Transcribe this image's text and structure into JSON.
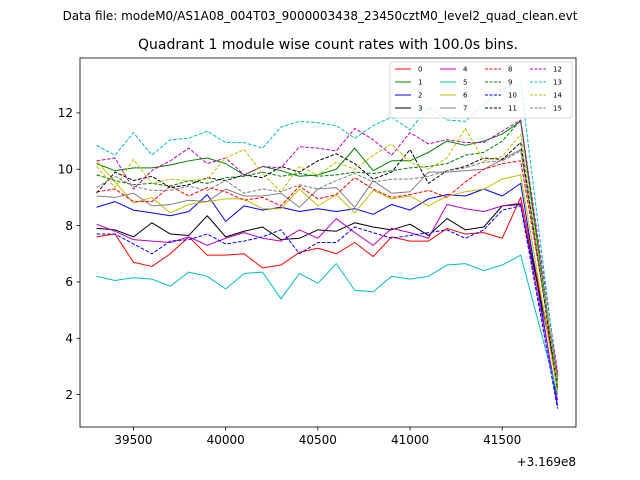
{
  "suptitle": "Data file: modeM0/AS1A08_004T03_9000003438_23450cztM0_level2_quad_clean.evt",
  "chart_data": {
    "type": "line",
    "title": "Quadrant 1 module wise count rates with 100.0s bins.",
    "xlabel": "",
    "ylabel": "",
    "x_offset_label": "+3.169e8",
    "xlim": [
      39210,
      41900
    ],
    "ylim": [
      0.85,
      13.95
    ],
    "xticks": [
      39500,
      40000,
      40500,
      41000,
      41500
    ],
    "yticks": [
      2,
      4,
      6,
      8,
      10,
      12
    ],
    "x": [
      39300,
      39400,
      39500,
      39600,
      39700,
      39800,
      39900,
      40000,
      40100,
      40200,
      40300,
      40400,
      40500,
      40600,
      40700,
      40800,
      40900,
      41000,
      41100,
      41200,
      41300,
      41400,
      41500,
      41600,
      41800
    ],
    "series": [
      {
        "name": "0",
        "color": "#ff0000",
        "dash": false,
        "values": [
          7.6,
          7.7,
          6.7,
          6.55,
          7.0,
          7.6,
          6.95,
          6.95,
          7.0,
          6.5,
          6.6,
          7.05,
          7.2,
          7.0,
          7.4,
          6.9,
          7.6,
          7.45,
          7.45,
          7.9,
          7.7,
          7.75,
          7.55,
          9.0,
          2.6
        ]
      },
      {
        "name": "1",
        "color": "#008000",
        "dash": false,
        "values": [
          10.2,
          9.95,
          10.05,
          10.05,
          10.15,
          10.3,
          10.4,
          10.2,
          9.8,
          10.1,
          9.95,
          9.75,
          9.8,
          10.0,
          10.75,
          9.95,
          10.3,
          10.3,
          10.6,
          11.0,
          10.85,
          11.0,
          11.25,
          11.7,
          2.2
        ]
      },
      {
        "name": "2",
        "color": "#0000ff",
        "dash": false,
        "values": [
          8.65,
          8.85,
          8.55,
          8.45,
          8.35,
          8.5,
          9.1,
          8.15,
          8.7,
          8.55,
          8.65,
          8.5,
          8.6,
          8.5,
          8.6,
          8.4,
          8.75,
          8.55,
          8.95,
          9.1,
          9.05,
          9.3,
          9.05,
          9.5,
          1.6
        ]
      },
      {
        "name": "3",
        "color": "#000000",
        "dash": false,
        "values": [
          7.9,
          7.85,
          7.6,
          8.1,
          7.7,
          7.65,
          8.35,
          7.6,
          7.8,
          7.95,
          7.5,
          7.55,
          7.85,
          7.8,
          8.1,
          7.95,
          7.85,
          8.05,
          7.65,
          8.25,
          7.85,
          7.95,
          8.7,
          8.75,
          2.5
        ]
      },
      {
        "name": "4",
        "color": "#bf00bf",
        "dash": false,
        "values": [
          8.05,
          7.8,
          7.5,
          7.45,
          7.4,
          7.6,
          7.3,
          7.55,
          7.75,
          7.55,
          7.45,
          7.85,
          7.55,
          8.25,
          7.75,
          7.3,
          7.9,
          7.75,
          7.55,
          8.75,
          8.6,
          8.5,
          8.7,
          8.8,
          1.8
        ]
      },
      {
        "name": "5",
        "color": "#00bfbf",
        "dash": false,
        "values": [
          6.2,
          6.05,
          6.15,
          6.1,
          5.85,
          6.35,
          6.2,
          5.75,
          6.3,
          6.35,
          5.4,
          6.3,
          5.95,
          6.65,
          5.7,
          5.65,
          6.2,
          6.1,
          6.2,
          6.6,
          6.65,
          6.4,
          6.6,
          6.95,
          2.0
        ]
      },
      {
        "name": "6",
        "color": "#bfbf00",
        "dash": false,
        "values": [
          10.3,
          9.55,
          8.8,
          9.0,
          8.45,
          8.75,
          8.85,
          8.95,
          8.95,
          8.6,
          8.6,
          9.3,
          8.7,
          9.1,
          8.45,
          9.25,
          8.95,
          9.05,
          8.7,
          9.05,
          9.2,
          9.3,
          9.65,
          9.8,
          2.1
        ]
      },
      {
        "name": "7",
        "color": "#808080",
        "dash": false,
        "values": [
          9.05,
          9.0,
          9.15,
          8.7,
          8.75,
          8.9,
          8.85,
          9.3,
          9.05,
          9.05,
          9.15,
          8.65,
          9.3,
          9.35,
          8.65,
          9.6,
          9.15,
          9.2,
          9.9,
          9.9,
          9.95,
          10.0,
          10.35,
          10.7,
          2.4
        ]
      },
      {
        "name": "8",
        "color": "#ff0000",
        "dash": true,
        "values": [
          9.2,
          9.3,
          8.85,
          8.85,
          9.4,
          9.05,
          9.35,
          9.2,
          8.9,
          9.0,
          8.7,
          9.4,
          8.95,
          9.1,
          9.7,
          9.3,
          9.0,
          9.1,
          9.25,
          9.0,
          9.55,
          10.0,
          10.2,
          10.3,
          2.7
        ]
      },
      {
        "name": "9",
        "color": "#008000",
        "dash": true,
        "values": [
          9.8,
          9.6,
          9.45,
          9.5,
          9.4,
          9.6,
          9.5,
          9.7,
          9.75,
          9.9,
          9.75,
          9.85,
          9.75,
          9.8,
          9.9,
          9.85,
          9.95,
          10.05,
          10.1,
          10.2,
          10.5,
          10.6,
          11.0,
          11.75,
          2.3
        ]
      },
      {
        "name": "10",
        "color": "#0000ff",
        "dash": true,
        "values": [
          7.7,
          7.7,
          7.35,
          7.0,
          7.45,
          7.5,
          7.7,
          7.35,
          7.45,
          7.6,
          7.85,
          7.0,
          7.4,
          7.4,
          7.95,
          7.75,
          7.55,
          7.65,
          7.75,
          7.85,
          7.55,
          7.85,
          8.55,
          8.7,
          1.5
        ]
      },
      {
        "name": "11",
        "color": "#000000",
        "dash": true,
        "values": [
          9.15,
          9.9,
          9.6,
          9.75,
          9.35,
          9.45,
          9.7,
          9.6,
          9.8,
          9.7,
          10.1,
          9.9,
          10.3,
          10.55,
          10.2,
          9.65,
          9.9,
          10.7,
          9.5,
          9.95,
          10.1,
          10.4,
          10.35,
          10.95,
          2.2
        ]
      },
      {
        "name": "12",
        "color": "#bf00bf",
        "dash": true,
        "values": [
          10.3,
          10.4,
          9.3,
          9.95,
          10.3,
          10.75,
          10.2,
          10.4,
          9.8,
          10.1,
          10.05,
          10.8,
          10.75,
          10.65,
          11.45,
          11.05,
          10.5,
          11.3,
          10.9,
          11.05,
          10.95,
          10.95,
          11.35,
          11.75,
          2.8
        ]
      },
      {
        "name": "13",
        "color": "#00bfbf",
        "dash": true,
        "values": [
          10.85,
          10.5,
          11.3,
          10.5,
          11.05,
          11.1,
          11.35,
          10.95,
          10.95,
          10.75,
          11.5,
          11.7,
          11.65,
          11.55,
          11.1,
          11.55,
          11.85,
          11.4,
          12.2,
          11.75,
          11.7,
          12.3,
          12.85,
          13.05,
          2.5
        ]
      },
      {
        "name": "14",
        "color": "#bfbf00",
        "dash": true,
        "values": [
          10.1,
          9.35,
          10.35,
          9.5,
          9.65,
          9.6,
          9.65,
          10.4,
          10.7,
          9.85,
          9.2,
          10.1,
          9.8,
          10.25,
          10.0,
          10.5,
          10.9,
          10.25,
          10.0,
          10.4,
          11.45,
          10.3,
          10.45,
          11.25,
          2.3
        ]
      },
      {
        "name": "15",
        "color": "#808080",
        "dash": true,
        "values": [
          9.35,
          9.75,
          9.4,
          9.25,
          9.25,
          9.4,
          9.25,
          9.6,
          9.15,
          9.3,
          9.2,
          9.45,
          9.3,
          9.6,
          9.85,
          9.55,
          9.65,
          9.65,
          9.75,
          9.95,
          10.05,
          10.25,
          10.3,
          10.65,
          2.6
        ]
      }
    ],
    "legend": {
      "placement": "top-right",
      "ncol": 4
    }
  }
}
